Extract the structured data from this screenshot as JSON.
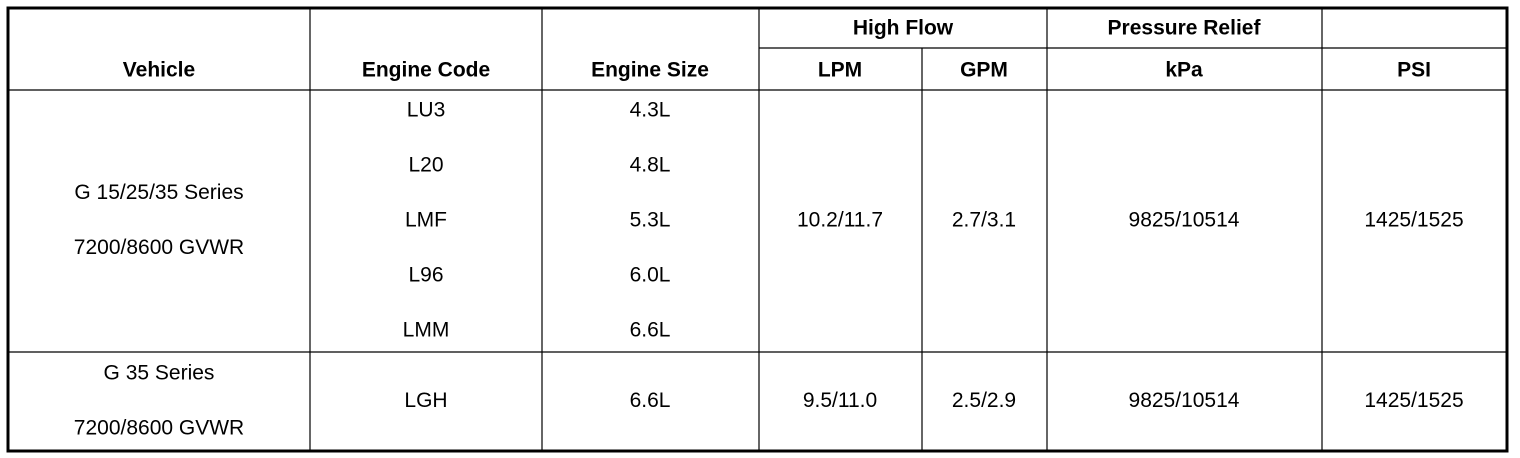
{
  "header": {
    "vehicle": "Vehicle",
    "engine_code": "Engine Code",
    "engine_size": "Engine Size",
    "high_flow": "High Flow",
    "pressure_relief": "Pressure Relief",
    "lpm": "LPM",
    "gpm": "GPM",
    "kpa": "kPa",
    "psi": "PSI"
  },
  "rows": [
    {
      "vehicle": [
        "G 15/25/35 Series",
        "7200/8600 GVWR"
      ],
      "engine_codes": [
        "LU3",
        "L20",
        "LMF",
        "L96",
        "LMM"
      ],
      "engine_sizes": [
        "4.3L",
        "4.8L",
        "5.3L",
        "6.0L",
        "6.6L"
      ],
      "lpm": "10.2/11.7",
      "gpm": "2.7/3.1",
      "kpa": "9825/10514",
      "psi": "1425/1525"
    },
    {
      "vehicle": [
        "G 35 Series",
        "7200/8600 GVWR"
      ],
      "engine_codes": [
        "LGH"
      ],
      "engine_sizes": [
        "6.6L"
      ],
      "lpm": "9.5/11.0",
      "gpm": "2.5/2.9",
      "kpa": "9825/10514",
      "psi": "1425/1525"
    }
  ]
}
